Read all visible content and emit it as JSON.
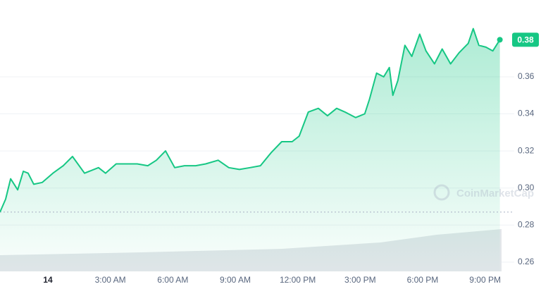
{
  "chart_data": {
    "type": "area",
    "watermark": "CoinMarketCap",
    "x": [
      -2.3,
      -2.03,
      -1.79,
      -1.45,
      -1.18,
      -0.95,
      -0.68,
      -0.27,
      0.24,
      0.74,
      1.18,
      1.76,
      2.43,
      2.77,
      3.28,
      3.79,
      4.29,
      4.8,
      5.21,
      5.65,
      6.09,
      6.56,
      7.1,
      7.58,
      8.18,
      8.69,
      9.2,
      9.71,
      10.21,
      10.72,
      11.23,
      11.73,
      12.07,
      12.51,
      12.99,
      13.43,
      13.87,
      14.27,
      14.78,
      15.22,
      15.45,
      15.79,
      16.13,
      16.4,
      16.57,
      16.81,
      17.15,
      17.48,
      17.86,
      18.16,
      18.57,
      18.94,
      19.34,
      19.75,
      20.19,
      20.43,
      20.7,
      21.04,
      21.37,
      21.71
    ],
    "series": [
      {
        "color": "#16c784",
        "values": [
          0.287,
          0.294,
          0.305,
          0.299,
          0.309,
          0.308,
          0.302,
          0.303,
          0.308,
          0.312,
          0.317,
          0.308,
          0.311,
          0.308,
          0.313,
          0.313,
          0.313,
          0.312,
          0.315,
          0.32,
          0.311,
          0.312,
          0.312,
          0.313,
          0.315,
          0.311,
          0.31,
          0.311,
          0.312,
          0.319,
          0.325,
          0.325,
          0.328,
          0.341,
          0.343,
          0.339,
          0.343,
          0.341,
          0.338,
          0.34,
          0.348,
          0.362,
          0.36,
          0.365,
          0.35,
          0.358,
          0.377,
          0.371,
          0.383,
          0.374,
          0.367,
          0.375,
          0.367,
          0.373,
          0.378,
          0.386,
          0.377,
          0.376,
          0.374,
          0.38
        ]
      }
    ],
    "xlim": [
      -2.3,
      22.4
    ],
    "xticks": [
      {
        "value": 0,
        "label": "14"
      },
      {
        "value": 3,
        "label": "3:00 AM"
      },
      {
        "value": 6,
        "label": "6:00 AM"
      },
      {
        "value": 9,
        "label": "9:00 AM"
      },
      {
        "value": 12,
        "label": "12:00 PM"
      },
      {
        "value": 15,
        "label": "3:00 PM"
      },
      {
        "value": 18,
        "label": "6:00 PM"
      },
      {
        "value": 21,
        "label": "9:00 PM"
      }
    ],
    "ylim": [
      0.255,
      0.4
    ],
    "yticks": [
      0.26,
      0.28,
      {
        "value": 0.3,
        "label": "0.30"
      },
      0.32,
      0.34,
      0.36
    ],
    "grid": true
  }
}
